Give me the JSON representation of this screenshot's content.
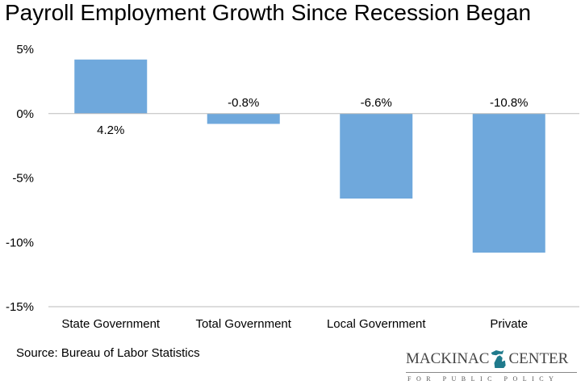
{
  "chart_data": {
    "type": "bar",
    "title": "Payroll Employment Growth Since Recession Began",
    "categories": [
      "State Government",
      "Total Government",
      "Local Government",
      "Private"
    ],
    "values": [
      4.2,
      -0.8,
      -6.6,
      -10.8
    ],
    "data_labels": [
      "4.2%",
      "-0.8%",
      "-6.6%",
      "-10.8%"
    ],
    "ylim": [
      -15,
      5
    ],
    "yticks": [
      5,
      0,
      -5,
      -10,
      -15
    ],
    "ytick_labels": [
      "5%",
      "0%",
      "-5%",
      "-10%",
      "-15%"
    ],
    "xlabel": "",
    "ylabel": "",
    "grid": false,
    "bar_color": "#6fa8dc"
  },
  "source": "Source: Bureau of Labor Statistics",
  "logo": {
    "name": "MACKINAC CENTER",
    "tagline": "FOR PUBLIC POLICY",
    "left": "MACKINAC",
    "right": "CENTER",
    "color": "#1f7a8c"
  }
}
